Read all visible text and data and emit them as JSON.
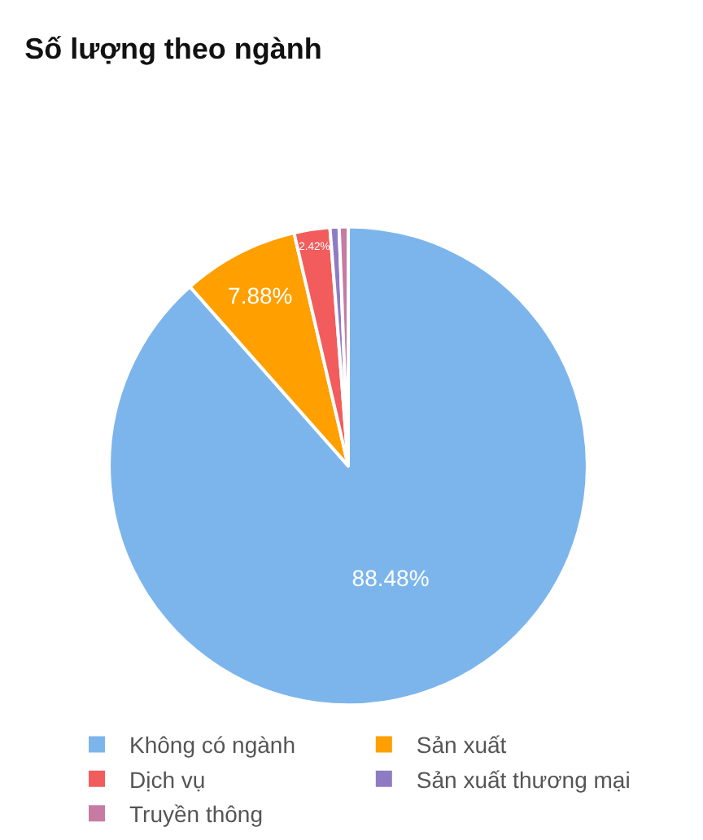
{
  "chart_data": {
    "type": "pie",
    "title": "Số lượng theo ngành",
    "categories": [
      "Không có ngành",
      "Sản xuất",
      "Dịch vụ",
      "Sản xuất thương mại",
      "Truyền thông"
    ],
    "values": [
      88.48,
      7.88,
      2.42,
      0.61,
      0.61
    ],
    "colors": [
      "#7cb5ec",
      "#ff9f00",
      "#f25c5c",
      "#8e7cc3",
      "#c77ba3"
    ],
    "value_labels": [
      "88.48%",
      "7.88%",
      "2.42%",
      null,
      null
    ],
    "legend": "bottom"
  }
}
